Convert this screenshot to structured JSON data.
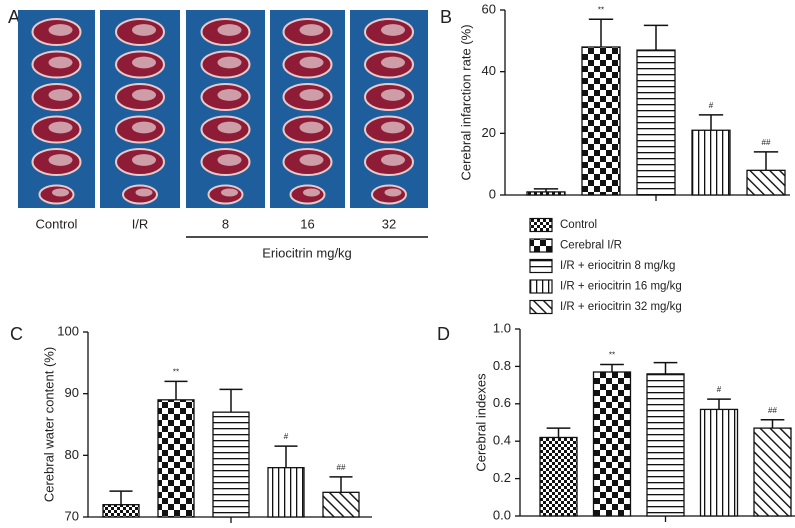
{
  "chart_data": [
    {
      "type": "photo",
      "panel": "A",
      "categories": [
        "Control",
        "I/R",
        "8",
        "16",
        "32"
      ],
      "group_label": "Eriocitrin mg/kg"
    },
    {
      "type": "bar",
      "panel": "B",
      "ylabel": "Cerebral infarction rate (%)",
      "categories": [
        "Control",
        "Cerebral I/R",
        "I/R + eriocitrin 8 mg/kg",
        "I/R + eriocitrin 16 mg/kg",
        "I/R + eriocitrin 32 mg/kg"
      ],
      "values": [
        1,
        48,
        47,
        21,
        8
      ],
      "errors": [
        1,
        9,
        8,
        5,
        6
      ],
      "annotations": [
        null,
        "**",
        null,
        "#",
        "##"
      ],
      "patterns": [
        "checker-small",
        "checker-large",
        "horizontal",
        "vertical",
        "diagonal"
      ],
      "ylim": [
        0,
        60
      ],
      "yticks": [
        0,
        20,
        40,
        60
      ],
      "legend": true
    },
    {
      "type": "bar",
      "panel": "C",
      "ylabel": "Cerebral water content (%)",
      "values": [
        72,
        89,
        87,
        78,
        74
      ],
      "errors": [
        2.2,
        3,
        3.7,
        3.5,
        2.5
      ],
      "annotations": [
        null,
        "**",
        null,
        "#",
        "##"
      ],
      "patterns": [
        "checker-small",
        "checker-large",
        "horizontal",
        "vertical",
        "diagonal"
      ],
      "ylim": [
        70,
        100
      ],
      "yticks": [
        70,
        80,
        90,
        100
      ]
    },
    {
      "type": "bar",
      "panel": "D",
      "ylabel": "Cerebral indexes",
      "values": [
        0.42,
        0.77,
        0.76,
        0.57,
        0.47
      ],
      "errors": [
        0.05,
        0.04,
        0.06,
        0.055,
        0.045
      ],
      "annotations": [
        null,
        "**",
        null,
        "#",
        "##"
      ],
      "patterns": [
        "checker-small",
        "checker-large",
        "horizontal",
        "vertical",
        "diagonal"
      ],
      "ylim": [
        0,
        1
      ],
      "yticks": [
        {
          "value": 0,
          "label": "0.0"
        },
        0.2,
        0.4,
        0.6,
        0.8,
        {
          "value": 1,
          "label": "1.0"
        }
      ]
    }
  ]
}
